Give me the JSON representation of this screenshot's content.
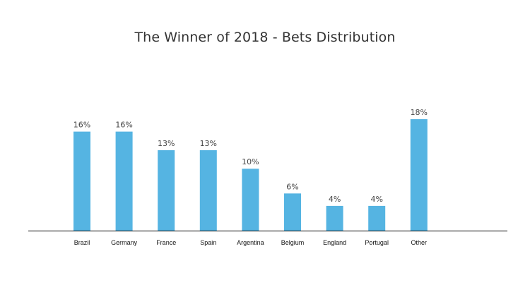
{
  "chart_data": {
    "type": "bar",
    "title": "The Winner of 2018 - Bets Distribution",
    "categories": [
      "Brazil",
      "Germany",
      "France",
      "Spain",
      "Argentina",
      "Belgium",
      "England",
      "Portugal",
      "Other"
    ],
    "values": [
      16,
      16,
      13,
      13,
      10,
      6,
      4,
      4,
      18
    ],
    "value_labels": [
      "16%",
      "16%",
      "13%",
      "13%",
      "10%",
      "6%",
      "4%",
      "4%",
      "18%"
    ],
    "unit": "%",
    "xlabel": "",
    "ylabel": "",
    "ylim": [
      0,
      18
    ],
    "grid": false,
    "legend": "none",
    "bar_color": "#55b4e2",
    "axis_color": "#000000"
  }
}
